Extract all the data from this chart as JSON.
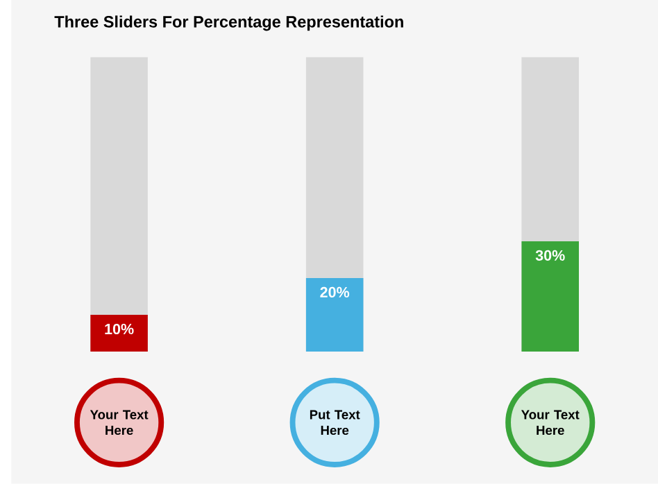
{
  "chart_data": {
    "type": "bar",
    "title": "Three Sliders For Percentage Representation",
    "categories": [
      "Your Text Here",
      "Put Text Here",
      "Your Text Here"
    ],
    "values": [
      10,
      20,
      30
    ],
    "colors": [
      "#c00000",
      "#45b0e0",
      "#3aa53a"
    ],
    "value_labels": [
      "10%",
      "20%",
      "30%"
    ],
    "ylim": [
      0,
      80
    ],
    "tick_labels": false
  }
}
